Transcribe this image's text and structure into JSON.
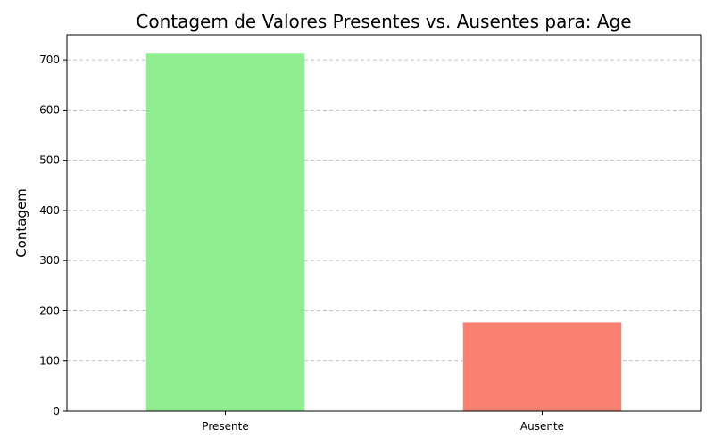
{
  "chart_data": {
    "type": "bar",
    "title": "Contagem de Valores Presentes vs. Ausentes para: Age",
    "xlabel": "",
    "ylabel": "Contagem",
    "categories": [
      "Presente",
      "Ausente"
    ],
    "values": [
      714,
      177
    ],
    "colors": [
      "#90ee90",
      "#fa8072"
    ],
    "ylim": [
      0,
      750
    ],
    "yticks": [
      0,
      100,
      200,
      300,
      400,
      500,
      600,
      700
    ],
    "grid": "y-dashed",
    "legend": "none"
  }
}
